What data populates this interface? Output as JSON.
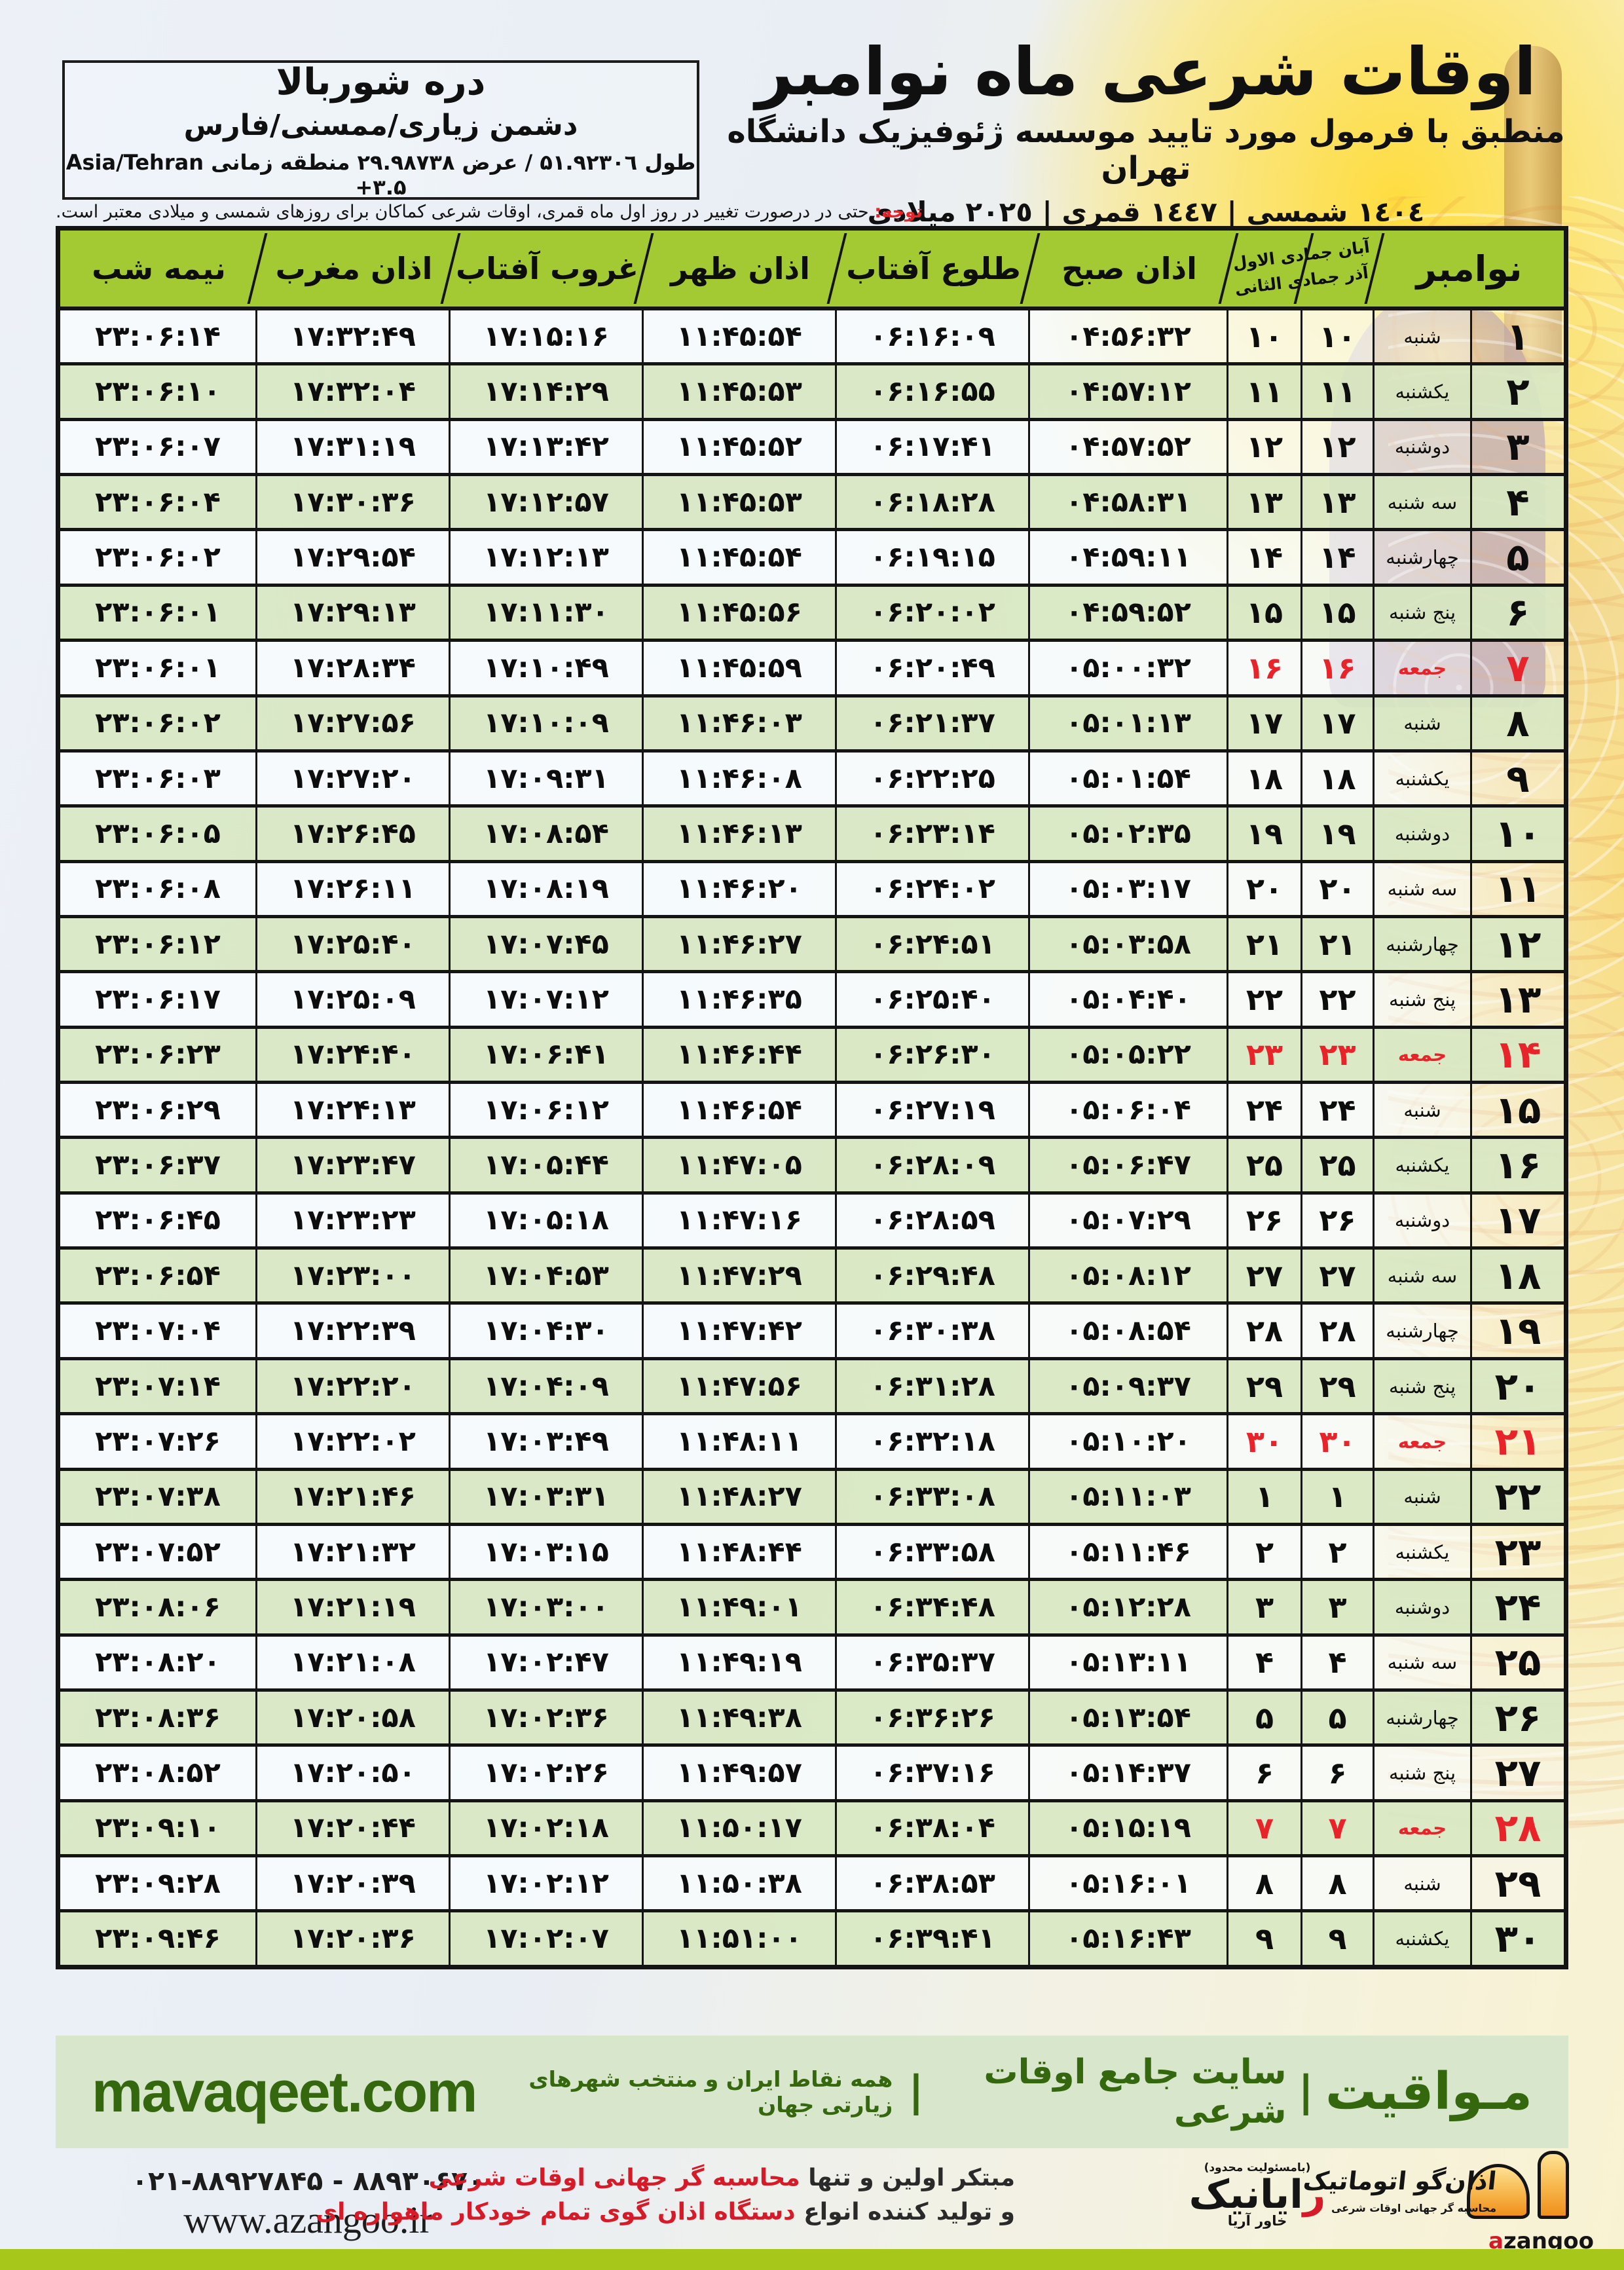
{
  "colors": {
    "header_green": "#a4ca33",
    "row_green": "#d9e8c3",
    "accent_red": "#e8232a",
    "band_bg": "#d8e7cc",
    "band_text": "#35670f",
    "bottom_strip": "#a7c71b"
  },
  "header": {
    "title": "اوقات شرعی ماه نوامبر",
    "subtitle": "منطبق با فرمول مورد تایید موسسه ژئوفیزیک دانشگاه تهران",
    "calendars": "١٤٠٤ شمسی | ١٤٤٧ قمری | ٢٠٢٥ میلادی"
  },
  "location": {
    "name": "دره شوربالا",
    "region": "دشمن زیاری/ممسنی/فارس",
    "coords": "طول ۵۱.۹۲۳۰٦ / عرض ۲۹.۹۸۷۳۸ منطقه زمانی ‎Asia/Tehran +۳.۵‎"
  },
  "notice": {
    "label": "توجه:",
    "text": " حتی در درصورت تغییر در روز اول ماه قمری، اوقات شرعی کماکان برای روزهای شمسی و میلادی معتبر است."
  },
  "table": {
    "columns": {
      "november": "نوامبر",
      "months_line1": "آبان  جمادی الاول",
      "months_line2": "آذر  جمادی الثانی",
      "sobh": "اذان صبح",
      "tolu": "طلوع آفتاب",
      "zohr": "اذان ظهر",
      "ghorub": "غروب آفتاب",
      "maghreb": "اذان مغرب",
      "nimeshab": "نیمه شب"
    },
    "rows": [
      {
        "day": "۱",
        "weekday": "شنبه",
        "aban": "۱۰",
        "jomadi": "۱۰",
        "sobh": "۰۴:۵۶:۳۲",
        "tolu": "۰۶:۱۶:۰۹",
        "zohr": "۱۱:۴۵:۵۴",
        "ghorub": "۱۷:۱۵:۱۶",
        "maghreb": "۱۷:۳۲:۴۹",
        "nimeshab": "۲۳:۰۶:۱۴",
        "friday": false
      },
      {
        "day": "۲",
        "weekday": "یکشنبه",
        "aban": "۱۱",
        "jomadi": "۱۱",
        "sobh": "۰۴:۵۷:۱۲",
        "tolu": "۰۶:۱۶:۵۵",
        "zohr": "۱۱:۴۵:۵۳",
        "ghorub": "۱۷:۱۴:۲۹",
        "maghreb": "۱۷:۳۲:۰۴",
        "nimeshab": "۲۳:۰۶:۱۰",
        "friday": false
      },
      {
        "day": "۳",
        "weekday": "دوشنبه",
        "aban": "۱۲",
        "jomadi": "۱۲",
        "sobh": "۰۴:۵۷:۵۲",
        "tolu": "۰۶:۱۷:۴۱",
        "zohr": "۱۱:۴۵:۵۲",
        "ghorub": "۱۷:۱۳:۴۲",
        "maghreb": "۱۷:۳۱:۱۹",
        "nimeshab": "۲۳:۰۶:۰۷",
        "friday": false
      },
      {
        "day": "۴",
        "weekday": "سه شنبه",
        "aban": "۱۳",
        "jomadi": "۱۳",
        "sobh": "۰۴:۵۸:۳۱",
        "tolu": "۰۶:۱۸:۲۸",
        "zohr": "۱۱:۴۵:۵۳",
        "ghorub": "۱۷:۱۲:۵۷",
        "maghreb": "۱۷:۳۰:۳۶",
        "nimeshab": "۲۳:۰۶:۰۴",
        "friday": false
      },
      {
        "day": "۵",
        "weekday": "چهارشنبه",
        "aban": "۱۴",
        "jomadi": "۱۴",
        "sobh": "۰۴:۵۹:۱۱",
        "tolu": "۰۶:۱۹:۱۵",
        "zohr": "۱۱:۴۵:۵۴",
        "ghorub": "۱۷:۱۲:۱۳",
        "maghreb": "۱۷:۲۹:۵۴",
        "nimeshab": "۲۳:۰۶:۰۲",
        "friday": false
      },
      {
        "day": "۶",
        "weekday": "پنج شنبه",
        "aban": "۱۵",
        "jomadi": "۱۵",
        "sobh": "۰۴:۵۹:۵۲",
        "tolu": "۰۶:۲۰:۰۲",
        "zohr": "۱۱:۴۵:۵۶",
        "ghorub": "۱۷:۱۱:۳۰",
        "maghreb": "۱۷:۲۹:۱۳",
        "nimeshab": "۲۳:۰۶:۰۱",
        "friday": false
      },
      {
        "day": "۷",
        "weekday": "جمعه",
        "aban": "۱۶",
        "jomadi": "۱۶",
        "sobh": "۰۵:۰۰:۳۲",
        "tolu": "۰۶:۲۰:۴۹",
        "zohr": "۱۱:۴۵:۵۹",
        "ghorub": "۱۷:۱۰:۴۹",
        "maghreb": "۱۷:۲۸:۳۴",
        "nimeshab": "۲۳:۰۶:۰۱",
        "friday": true
      },
      {
        "day": "۸",
        "weekday": "شنبه",
        "aban": "۱۷",
        "jomadi": "۱۷",
        "sobh": "۰۵:۰۱:۱۳",
        "tolu": "۰۶:۲۱:۳۷",
        "zohr": "۱۱:۴۶:۰۳",
        "ghorub": "۱۷:۱۰:۰۹",
        "maghreb": "۱۷:۲۷:۵۶",
        "nimeshab": "۲۳:۰۶:۰۲",
        "friday": false
      },
      {
        "day": "۹",
        "weekday": "یکشنبه",
        "aban": "۱۸",
        "jomadi": "۱۸",
        "sobh": "۰۵:۰۱:۵۴",
        "tolu": "۰۶:۲۲:۲۵",
        "zohr": "۱۱:۴۶:۰۸",
        "ghorub": "۱۷:۰۹:۳۱",
        "maghreb": "۱۷:۲۷:۲۰",
        "nimeshab": "۲۳:۰۶:۰۳",
        "friday": false
      },
      {
        "day": "۱۰",
        "weekday": "دوشنبه",
        "aban": "۱۹",
        "jomadi": "۱۹",
        "sobh": "۰۵:۰۲:۳۵",
        "tolu": "۰۶:۲۳:۱۴",
        "zohr": "۱۱:۴۶:۱۳",
        "ghorub": "۱۷:۰۸:۵۴",
        "maghreb": "۱۷:۲۶:۴۵",
        "nimeshab": "۲۳:۰۶:۰۵",
        "friday": false
      },
      {
        "day": "۱۱",
        "weekday": "سه شنبه",
        "aban": "۲۰",
        "jomadi": "۲۰",
        "sobh": "۰۵:۰۳:۱۷",
        "tolu": "۰۶:۲۴:۰۲",
        "zohr": "۱۱:۴۶:۲۰",
        "ghorub": "۱۷:۰۸:۱۹",
        "maghreb": "۱۷:۲۶:۱۱",
        "nimeshab": "۲۳:۰۶:۰۸",
        "friday": false
      },
      {
        "day": "۱۲",
        "weekday": "چهارشنبه",
        "aban": "۲۱",
        "jomadi": "۲۱",
        "sobh": "۰۵:۰۳:۵۸",
        "tolu": "۰۶:۲۴:۵۱",
        "zohr": "۱۱:۴۶:۲۷",
        "ghorub": "۱۷:۰۷:۴۵",
        "maghreb": "۱۷:۲۵:۴۰",
        "nimeshab": "۲۳:۰۶:۱۲",
        "friday": false
      },
      {
        "day": "۱۳",
        "weekday": "پنج شنبه",
        "aban": "۲۲",
        "jomadi": "۲۲",
        "sobh": "۰۵:۰۴:۴۰",
        "tolu": "۰۶:۲۵:۴۰",
        "zohr": "۱۱:۴۶:۳۵",
        "ghorub": "۱۷:۰۷:۱۲",
        "maghreb": "۱۷:۲۵:۰۹",
        "nimeshab": "۲۳:۰۶:۱۷",
        "friday": false
      },
      {
        "day": "۱۴",
        "weekday": "جمعه",
        "aban": "۲۳",
        "jomadi": "۲۳",
        "sobh": "۰۵:۰۵:۲۲",
        "tolu": "۰۶:۲۶:۳۰",
        "zohr": "۱۱:۴۶:۴۴",
        "ghorub": "۱۷:۰۶:۴۱",
        "maghreb": "۱۷:۲۴:۴۰",
        "nimeshab": "۲۳:۰۶:۲۳",
        "friday": true
      },
      {
        "day": "۱۵",
        "weekday": "شنبه",
        "aban": "۲۴",
        "jomadi": "۲۴",
        "sobh": "۰۵:۰۶:۰۴",
        "tolu": "۰۶:۲۷:۱۹",
        "zohr": "۱۱:۴۶:۵۴",
        "ghorub": "۱۷:۰۶:۱۲",
        "maghreb": "۱۷:۲۴:۱۳",
        "nimeshab": "۲۳:۰۶:۲۹",
        "friday": false
      },
      {
        "day": "۱۶",
        "weekday": "یکشنبه",
        "aban": "۲۵",
        "jomadi": "۲۵",
        "sobh": "۰۵:۰۶:۴۷",
        "tolu": "۰۶:۲۸:۰۹",
        "zohr": "۱۱:۴۷:۰۵",
        "ghorub": "۱۷:۰۵:۴۴",
        "maghreb": "۱۷:۲۳:۴۷",
        "nimeshab": "۲۳:۰۶:۳۷",
        "friday": false
      },
      {
        "day": "۱۷",
        "weekday": "دوشنبه",
        "aban": "۲۶",
        "jomadi": "۲۶",
        "sobh": "۰۵:۰۷:۲۹",
        "tolu": "۰۶:۲۸:۵۹",
        "zohr": "۱۱:۴۷:۱۶",
        "ghorub": "۱۷:۰۵:۱۸",
        "maghreb": "۱۷:۲۳:۲۳",
        "nimeshab": "۲۳:۰۶:۴۵",
        "friday": false
      },
      {
        "day": "۱۸",
        "weekday": "سه شنبه",
        "aban": "۲۷",
        "jomadi": "۲۷",
        "sobh": "۰۵:۰۸:۱۲",
        "tolu": "۰۶:۲۹:۴۸",
        "zohr": "۱۱:۴۷:۲۹",
        "ghorub": "۱۷:۰۴:۵۳",
        "maghreb": "۱۷:۲۳:۰۰",
        "nimeshab": "۲۳:۰۶:۵۴",
        "friday": false
      },
      {
        "day": "۱۹",
        "weekday": "چهارشنبه",
        "aban": "۲۸",
        "jomadi": "۲۸",
        "sobh": "۰۵:۰۸:۵۴",
        "tolu": "۰۶:۳۰:۳۸",
        "zohr": "۱۱:۴۷:۴۲",
        "ghorub": "۱۷:۰۴:۳۰",
        "maghreb": "۱۷:۲۲:۳۹",
        "nimeshab": "۲۳:۰۷:۰۴",
        "friday": false
      },
      {
        "day": "۲۰",
        "weekday": "پنج شنبه",
        "aban": "۲۹",
        "jomadi": "۲۹",
        "sobh": "۰۵:۰۹:۳۷",
        "tolu": "۰۶:۳۱:۲۸",
        "zohr": "۱۱:۴۷:۵۶",
        "ghorub": "۱۷:۰۴:۰۹",
        "maghreb": "۱۷:۲۲:۲۰",
        "nimeshab": "۲۳:۰۷:۱۴",
        "friday": false
      },
      {
        "day": "۲۱",
        "weekday": "جمعه",
        "aban": "۳۰",
        "jomadi": "۳۰",
        "sobh": "۰۵:۱۰:۲۰",
        "tolu": "۰۶:۳۲:۱۸",
        "zohr": "۱۱:۴۸:۱۱",
        "ghorub": "۱۷:۰۳:۴۹",
        "maghreb": "۱۷:۲۲:۰۲",
        "nimeshab": "۲۳:۰۷:۲۶",
        "friday": true
      },
      {
        "day": "۲۲",
        "weekday": "شنبه",
        "aban": "۱",
        "jomadi": "۱",
        "sobh": "۰۵:۱۱:۰۳",
        "tolu": "۰۶:۳۳:۰۸",
        "zohr": "۱۱:۴۸:۲۷",
        "ghorub": "۱۷:۰۳:۳۱",
        "maghreb": "۱۷:۲۱:۴۶",
        "nimeshab": "۲۳:۰۷:۳۸",
        "friday": false
      },
      {
        "day": "۲۳",
        "weekday": "یکشنبه",
        "aban": "۲",
        "jomadi": "۲",
        "sobh": "۰۵:۱۱:۴۶",
        "tolu": "۰۶:۳۳:۵۸",
        "zohr": "۱۱:۴۸:۴۴",
        "ghorub": "۱۷:۰۳:۱۵",
        "maghreb": "۱۷:۲۱:۳۲",
        "nimeshab": "۲۳:۰۷:۵۲",
        "friday": false
      },
      {
        "day": "۲۴",
        "weekday": "دوشنبه",
        "aban": "۳",
        "jomadi": "۳",
        "sobh": "۰۵:۱۲:۲۸",
        "tolu": "۰۶:۳۴:۴۸",
        "zohr": "۱۱:۴۹:۰۱",
        "ghorub": "۱۷:۰۳:۰۰",
        "maghreb": "۱۷:۲۱:۱۹",
        "nimeshab": "۲۳:۰۸:۰۶",
        "friday": false
      },
      {
        "day": "۲۵",
        "weekday": "سه شنبه",
        "aban": "۴",
        "jomadi": "۴",
        "sobh": "۰۵:۱۳:۱۱",
        "tolu": "۰۶:۳۵:۳۷",
        "zohr": "۱۱:۴۹:۱۹",
        "ghorub": "۱۷:۰۲:۴۷",
        "maghreb": "۱۷:۲۱:۰۸",
        "nimeshab": "۲۳:۰۸:۲۰",
        "friday": false
      },
      {
        "day": "۲۶",
        "weekday": "چهارشنبه",
        "aban": "۵",
        "jomadi": "۵",
        "sobh": "۰۵:۱۳:۵۴",
        "tolu": "۰۶:۳۶:۲۶",
        "zohr": "۱۱:۴۹:۳۸",
        "ghorub": "۱۷:۰۲:۳۶",
        "maghreb": "۱۷:۲۰:۵۸",
        "nimeshab": "۲۳:۰۸:۳۶",
        "friday": false
      },
      {
        "day": "۲۷",
        "weekday": "پنج شنبه",
        "aban": "۶",
        "jomadi": "۶",
        "sobh": "۰۵:۱۴:۳۷",
        "tolu": "۰۶:۳۷:۱۶",
        "zohr": "۱۱:۴۹:۵۷",
        "ghorub": "۱۷:۰۲:۲۶",
        "maghreb": "۱۷:۲۰:۵۰",
        "nimeshab": "۲۳:۰۸:۵۲",
        "friday": false
      },
      {
        "day": "۲۸",
        "weekday": "جمعه",
        "aban": "۷",
        "jomadi": "۷",
        "sobh": "۰۵:۱۵:۱۹",
        "tolu": "۰۶:۳۸:۰۴",
        "zohr": "۱۱:۵۰:۱۷",
        "ghorub": "۱۷:۰۲:۱۸",
        "maghreb": "۱۷:۲۰:۴۴",
        "nimeshab": "۲۳:۰۹:۱۰",
        "friday": true
      },
      {
        "day": "۲۹",
        "weekday": "شنبه",
        "aban": "۸",
        "jomadi": "۸",
        "sobh": "۰۵:۱۶:۰۱",
        "tolu": "۰۶:۳۸:۵۳",
        "zohr": "۱۱:۵۰:۳۸",
        "ghorub": "۱۷:۰۲:۱۲",
        "maghreb": "۱۷:۲۰:۳۹",
        "nimeshab": "۲۳:۰۹:۲۸",
        "friday": false
      },
      {
        "day": "۳۰",
        "weekday": "یکشنبه",
        "aban": "۹",
        "jomadi": "۹",
        "sobh": "۰۵:۱۶:۴۳",
        "tolu": "۰۶:۳۹:۴۱",
        "zohr": "۱۱:۵۱:۰۰",
        "ghorub": "۱۷:۰۲:۰۷",
        "maghreb": "۱۷:۲۰:۳۶",
        "nimeshab": "۲۳:۰۹:۴۶",
        "friday": false
      }
    ]
  },
  "band": {
    "brand_fa": "مـواقیت",
    "separator": "|",
    "site_desc": "سایت جامع اوقات شرعی",
    "coverage": "همه نقاط ایران و منتخب شهرهای زیارتی جهان",
    "domain": "mavaqeet.com"
  },
  "bottom": {
    "phone": "۰۲۱-۸۸۹۲۷۸۴۵ - ۸۸۹۳۰۶۷۰",
    "website": "www.azangoo.ir",
    "promo_line1_black": "مبتکر اولین و تنها ",
    "promo_line1_red": "محاسبه گر جهانی اوقات شرعی",
    "promo_line2_black": "و تولید کننده انواع ",
    "promo_line2_red": "دستگاه اذان گوی تمام خودکار ماهواره ای",
    "rayanik_note": "(بامسئولیت محدود)",
    "rayanik_first": "ر",
    "rayanik_rest": "ایانیک",
    "rayanik_sub": "خاور آریا",
    "azangoo_fa": "اذان‌گو اتوماتیک",
    "azangoo_tagline": "محاسبه گر جهانی اوقات شرعی",
    "azangoo_latin_a": "a",
    "azangoo_latin_rest": "zangoo"
  }
}
